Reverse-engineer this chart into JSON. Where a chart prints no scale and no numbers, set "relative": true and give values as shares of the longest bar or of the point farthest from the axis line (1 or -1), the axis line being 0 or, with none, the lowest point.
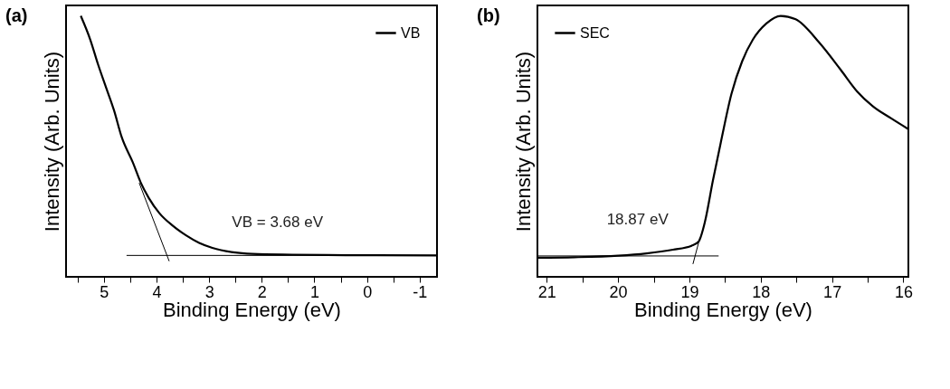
{
  "chart_data": [
    {
      "type": "line",
      "title": "(a)",
      "xlabel": "Binding Energy (eV)",
      "ylabel": "Intensity (Arb. Units)",
      "relative": true,
      "legend": "top right",
      "tick_labels": "x",
      "grid": false,
      "xlim": [
        5.72,
        -1.33
      ],
      "xticks": [
        {
          "value": 5.5,
          "label": null
        },
        5,
        {
          "value": 4.5,
          "label": null
        },
        4,
        {
          "value": 3.5,
          "label": null
        },
        3,
        {
          "value": 2.5,
          "label": null
        },
        2,
        {
          "value": 1.5,
          "label": null
        },
        1,
        {
          "value": 0.5,
          "label": null
        },
        0,
        {
          "value": -0.5,
          "label": null
        },
        -1
      ],
      "annotations": [
        "VB = 3.68 eV"
      ],
      "series": [
        {
          "name": "VB",
          "color": "#000000",
          "x": [
            5.44,
            5.26,
            5.11,
            4.96,
            4.81,
            4.66,
            4.45,
            4.3,
            4.15,
            3.95,
            3.7,
            3.44,
            3.19,
            2.94,
            2.54,
            2.18,
            1.42,
            0.41,
            -1.33
          ],
          "values": [
            1.0,
            0.909,
            0.813,
            0.726,
            0.639,
            0.534,
            0.438,
            0.361,
            0.303,
            0.245,
            0.197,
            0.159,
            0.13,
            0.111,
            0.094,
            0.088,
            0.085,
            0.083,
            0.082
          ]
        },
        {
          "type": "line",
          "color": "#000000",
          "x": [
            4.33,
            3.76
          ],
          "values": [
            0.36,
            0.06
          ]
        },
        {
          "type": "line",
          "color": "#000000",
          "x": [
            4.57,
            -1.33
          ],
          "values": [
            0.082,
            0.082
          ]
        }
      ]
    },
    {
      "type": "line",
      "title": "(b)",
      "xlabel": "Binding Energy (eV)",
      "ylabel": "Intensity (Arb. Units)",
      "relative": true,
      "legend": "top left",
      "tick_labels": "x",
      "grid": false,
      "xlim": [
        21.13,
        15.93
      ],
      "xticks": [
        21,
        {
          "value": 20.5,
          "label": null
        },
        20,
        {
          "value": 19.5,
          "label": null
        },
        19,
        {
          "value": 18.5,
          "label": null
        },
        18,
        {
          "value": 17.5,
          "label": null
        },
        17,
        {
          "value": 16.5,
          "label": null
        },
        16
      ],
      "annotations": [
        "18.87 eV"
      ],
      "series": [
        {
          "name": "SEC",
          "color": "#000000",
          "x": [
            21.13,
            20.61,
            20.0,
            19.6,
            19.23,
            18.97,
            18.87,
            18.78,
            18.67,
            18.56,
            18.41,
            18.26,
            18.11,
            17.92,
            17.72,
            17.51,
            17.18,
            16.88,
            16.65,
            16.43,
            16.17,
            15.93
          ],
          "values": [
            0.073,
            0.075,
            0.081,
            0.09,
            0.104,
            0.119,
            0.135,
            0.213,
            0.369,
            0.514,
            0.701,
            0.826,
            0.909,
            0.971,
            1.0,
            0.987,
            0.898,
            0.794,
            0.711,
            0.654,
            0.607,
            0.566
          ]
        },
        {
          "type": "line",
          "color": "#000000",
          "x": [
            18.95,
            18.85
          ],
          "values": [
            0.049,
            0.152
          ]
        },
        {
          "type": "line",
          "color": "#000000",
          "x": [
            21.13,
            18.59
          ],
          "values": [
            0.08,
            0.08
          ]
        }
      ]
    }
  ]
}
